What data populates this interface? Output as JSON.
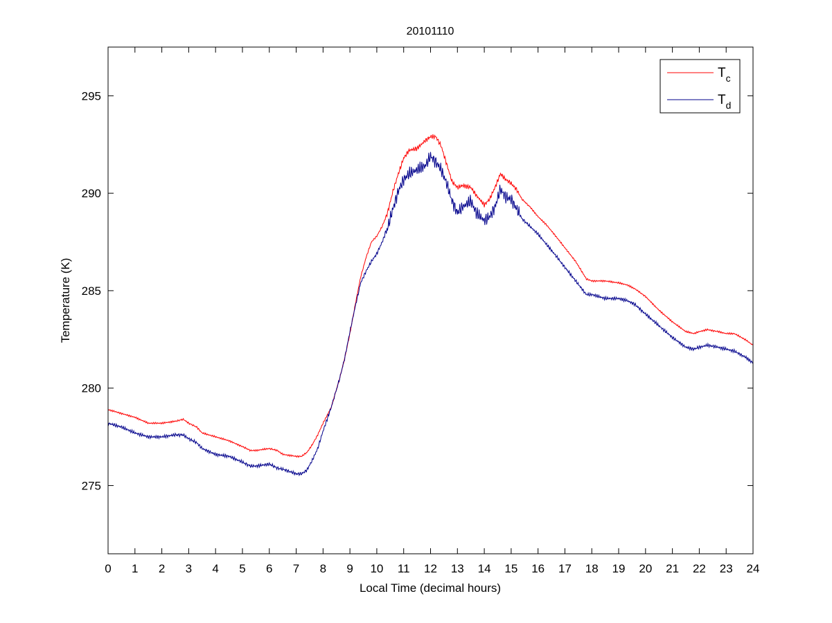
{
  "chart_data": {
    "type": "line",
    "title": "20101110",
    "xlabel": "Local Time (decimal hours)",
    "ylabel": "Temperature (K)",
    "xlim": [
      0,
      24
    ],
    "ylim": [
      271.5,
      297.5
    ],
    "xticks": [
      0,
      1,
      2,
      3,
      4,
      5,
      6,
      7,
      8,
      9,
      10,
      11,
      12,
      13,
      14,
      15,
      16,
      17,
      18,
      19,
      20,
      21,
      22,
      23,
      24
    ],
    "yticks": [
      275,
      280,
      285,
      290,
      295
    ],
    "grid": false,
    "legend_position": "top-right",
    "series": [
      {
        "name": "T",
        "subscript": "c",
        "color": "#ff0000",
        "points": [
          [
            0,
            278.9
          ],
          [
            0.5,
            278.7
          ],
          [
            1,
            278.5
          ],
          [
            1.5,
            278.2
          ],
          [
            2,
            278.2
          ],
          [
            2.5,
            278.3
          ],
          [
            2.8,
            278.4
          ],
          [
            3,
            278.2
          ],
          [
            3.3,
            278.0
          ],
          [
            3.5,
            277.7
          ],
          [
            4,
            277.5
          ],
          [
            4.5,
            277.3
          ],
          [
            5,
            277.0
          ],
          [
            5.3,
            276.8
          ],
          [
            5.5,
            276.8
          ],
          [
            6,
            276.9
          ],
          [
            6.3,
            276.8
          ],
          [
            6.5,
            276.6
          ],
          [
            7,
            276.5
          ],
          [
            7.2,
            276.5
          ],
          [
            7.4,
            276.7
          ],
          [
            7.6,
            277.1
          ],
          [
            7.8,
            277.6
          ],
          [
            8,
            278.2
          ],
          [
            8.3,
            279.0
          ],
          [
            8.6,
            280.4
          ],
          [
            8.8,
            281.5
          ],
          [
            9,
            282.8
          ],
          [
            9.2,
            284.3
          ],
          [
            9.4,
            285.7
          ],
          [
            9.6,
            286.7
          ],
          [
            9.8,
            287.5
          ],
          [
            10,
            287.8
          ],
          [
            10.2,
            288.3
          ],
          [
            10.4,
            289.0
          ],
          [
            10.6,
            290.1
          ],
          [
            10.8,
            291.0
          ],
          [
            11,
            291.8
          ],
          [
            11.2,
            292.2
          ],
          [
            11.5,
            292.3
          ],
          [
            11.8,
            292.7
          ],
          [
            12,
            292.9
          ],
          [
            12.2,
            292.9
          ],
          [
            12.4,
            292.4
          ],
          [
            12.6,
            291.5
          ],
          [
            12.8,
            290.6
          ],
          [
            13,
            290.3
          ],
          [
            13.2,
            290.4
          ],
          [
            13.5,
            290.3
          ],
          [
            13.7,
            289.9
          ],
          [
            14,
            289.4
          ],
          [
            14.2,
            289.7
          ],
          [
            14.4,
            290.3
          ],
          [
            14.6,
            291.0
          ],
          [
            14.8,
            290.7
          ],
          [
            15,
            290.5
          ],
          [
            15.2,
            290.2
          ],
          [
            15.4,
            289.7
          ],
          [
            15.7,
            289.3
          ],
          [
            16,
            288.8
          ],
          [
            16.3,
            288.4
          ],
          [
            16.6,
            287.9
          ],
          [
            17,
            287.2
          ],
          [
            17.4,
            286.5
          ],
          [
            17.8,
            285.6
          ],
          [
            18,
            285.5
          ],
          [
            18.5,
            285.5
          ],
          [
            19,
            285.4
          ],
          [
            19.3,
            285.3
          ],
          [
            19.6,
            285.1
          ],
          [
            20,
            284.7
          ],
          [
            20.5,
            284.0
          ],
          [
            21,
            283.4
          ],
          [
            21.5,
            282.9
          ],
          [
            21.8,
            282.8
          ],
          [
            22,
            282.9
          ],
          [
            22.3,
            283.0
          ],
          [
            22.7,
            282.9
          ],
          [
            23,
            282.8
          ],
          [
            23.3,
            282.8
          ],
          [
            23.7,
            282.5
          ],
          [
            24,
            282.2
          ]
        ]
      },
      {
        "name": "T",
        "subscript": "d",
        "color": "#00008b",
        "points": [
          [
            0,
            278.2
          ],
          [
            0.5,
            278.0
          ],
          [
            1,
            277.7
          ],
          [
            1.5,
            277.5
          ],
          [
            2,
            277.5
          ],
          [
            2.5,
            277.6
          ],
          [
            2.8,
            277.6
          ],
          [
            3,
            277.4
          ],
          [
            3.3,
            277.2
          ],
          [
            3.5,
            276.9
          ],
          [
            4,
            276.6
          ],
          [
            4.5,
            276.5
          ],
          [
            5,
            276.2
          ],
          [
            5.3,
            276.0
          ],
          [
            5.5,
            276.0
          ],
          [
            6,
            276.1
          ],
          [
            6.3,
            275.9
          ],
          [
            6.6,
            275.8
          ],
          [
            7,
            275.6
          ],
          [
            7.2,
            275.6
          ],
          [
            7.4,
            275.8
          ],
          [
            7.6,
            276.3
          ],
          [
            7.8,
            276.9
          ],
          [
            8,
            277.8
          ],
          [
            8.3,
            279.0
          ],
          [
            8.6,
            280.4
          ],
          [
            8.8,
            281.5
          ],
          [
            9,
            282.9
          ],
          [
            9.2,
            284.2
          ],
          [
            9.4,
            285.4
          ],
          [
            9.6,
            286.0
          ],
          [
            9.8,
            286.5
          ],
          [
            10,
            286.9
          ],
          [
            10.2,
            287.5
          ],
          [
            10.4,
            288.2
          ],
          [
            10.6,
            289.2
          ],
          [
            10.8,
            290.1
          ],
          [
            11,
            290.7
          ],
          [
            11.2,
            291.0
          ],
          [
            11.5,
            291.2
          ],
          [
            11.8,
            291.4
          ],
          [
            12,
            291.9
          ],
          [
            12.2,
            291.6
          ],
          [
            12.4,
            291.2
          ],
          [
            12.6,
            290.5
          ],
          [
            12.8,
            289.6
          ],
          [
            13,
            289.0
          ],
          [
            13.2,
            289.3
          ],
          [
            13.5,
            289.6
          ],
          [
            13.7,
            289.0
          ],
          [
            14,
            288.6
          ],
          [
            14.2,
            288.8
          ],
          [
            14.4,
            289.3
          ],
          [
            14.6,
            290.2
          ],
          [
            14.8,
            289.8
          ],
          [
            15,
            289.7
          ],
          [
            15.2,
            289.2
          ],
          [
            15.4,
            288.7
          ],
          [
            15.7,
            288.3
          ],
          [
            16,
            287.9
          ],
          [
            16.3,
            287.4
          ],
          [
            16.6,
            286.9
          ],
          [
            17,
            286.2
          ],
          [
            17.4,
            285.5
          ],
          [
            17.8,
            284.8
          ],
          [
            18,
            284.8
          ],
          [
            18.5,
            284.6
          ],
          [
            19,
            284.6
          ],
          [
            19.3,
            284.5
          ],
          [
            19.6,
            284.3
          ],
          [
            20,
            283.8
          ],
          [
            20.5,
            283.2
          ],
          [
            21,
            282.6
          ],
          [
            21.5,
            282.1
          ],
          [
            21.8,
            282.0
          ],
          [
            22,
            282.1
          ],
          [
            22.3,
            282.2
          ],
          [
            22.7,
            282.1
          ],
          [
            23,
            282.0
          ],
          [
            23.3,
            281.9
          ],
          [
            23.7,
            281.6
          ],
          [
            24,
            281.3
          ]
        ]
      }
    ]
  }
}
